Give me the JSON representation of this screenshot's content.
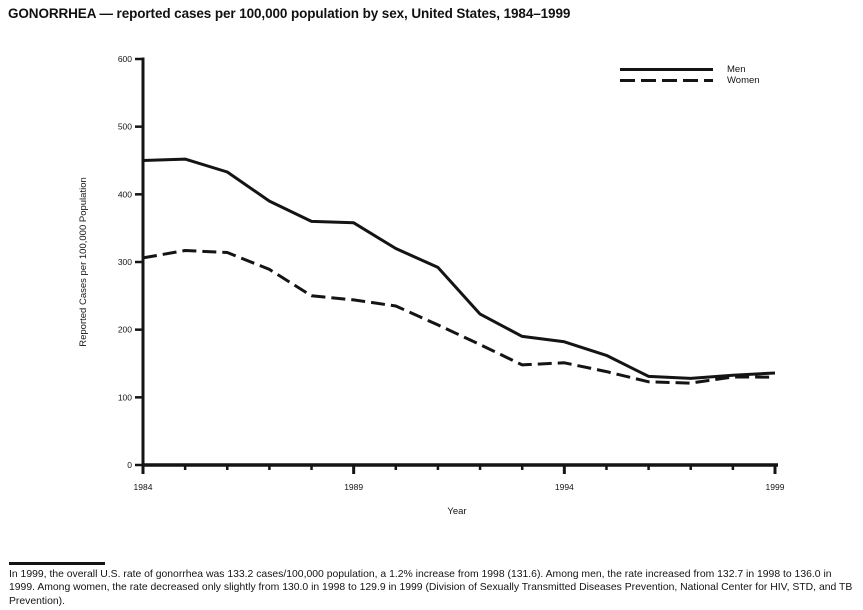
{
  "title": "GONORRHEA — reported cases per 100,000 population by sex, United States, 1984–1999",
  "chart_data": {
    "type": "line",
    "title": "GONORRHEA — reported cases per 100,000 population by sex, United States, 1984–1999",
    "xlabel": "Year",
    "ylabel": "Reported Cases per 100,000 Population",
    "x": [
      1984,
      1985,
      1986,
      1987,
      1988,
      1989,
      1990,
      1991,
      1992,
      1993,
      1994,
      1995,
      1996,
      1997,
      1998,
      1999
    ],
    "series": [
      {
        "name": "Men",
        "style": "solid",
        "values": [
          450,
          452,
          433,
          390,
          360,
          358,
          320,
          292,
          223,
          190,
          182,
          162,
          131,
          128,
          132.7,
          136.0
        ]
      },
      {
        "name": "Women",
        "style": "dashed",
        "values": [
          306,
          317,
          314,
          289,
          250,
          244,
          235,
          207,
          178,
          148,
          151,
          138,
          123,
          121,
          130.0,
          129.9
        ]
      }
    ],
    "ylim": [
      0,
      600
    ],
    "ytick_step": 100,
    "xticks_labeled": [
      1984,
      1989,
      1994,
      1999
    ],
    "legend_position": "top-right",
    "grid": false,
    "line_color": "#141414",
    "background_color": "#ffffff"
  },
  "footnote": {
    "text": "In 1999, the overall U.S. rate of gonorrhea was 133.2 cases/100,000 population, a 1.2% increase from 1998 (131.6). Among men, the rate increased from 132.7 in 1998 to 136.0 in 1999. Among women, the rate decreased only slightly from 130.0 in 1998 to 129.9 in 1999 (Division of Sexually Transmitted Diseases Prevention, National Center for HIV, STD, and TB Prevention)."
  }
}
